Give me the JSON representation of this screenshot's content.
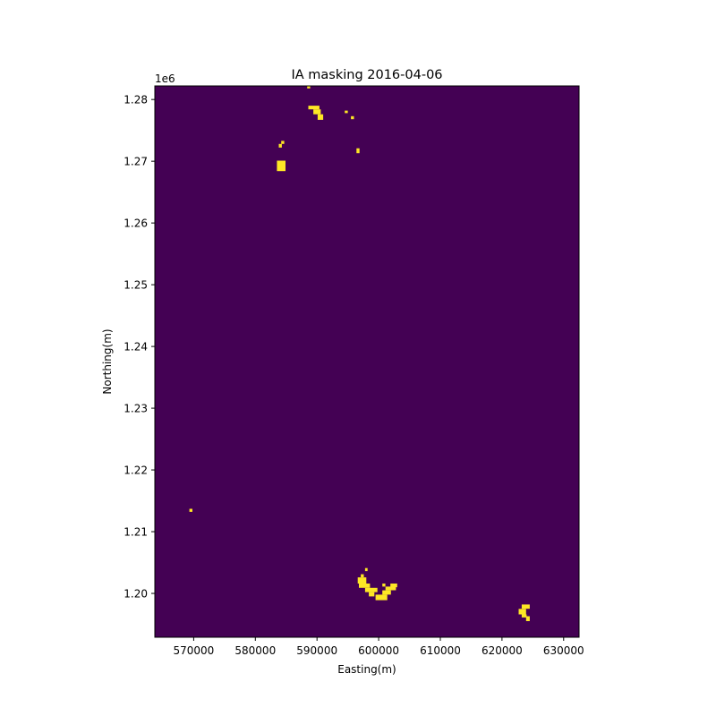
{
  "chart_data": {
    "type": "heatmap",
    "title": "IA masking 2016-04-06",
    "xlabel": "Easting(m)",
    "ylabel": "Northing(m)",
    "y_offset_label": "1e6",
    "xlim": [
      563700,
      632500
    ],
    "ylim": [
      1192900,
      1282200
    ],
    "x_ticks": [
      570000,
      580000,
      590000,
      600000,
      610000,
      620000,
      630000
    ],
    "x_tick_labels": [
      "570000",
      "580000",
      "590000",
      "600000",
      "610000",
      "620000",
      "630000"
    ],
    "y_ticks": [
      1200000,
      1210000,
      1220000,
      1230000,
      1240000,
      1250000,
      1260000,
      1270000,
      1280000
    ],
    "y_tick_labels": [
      "1.20",
      "1.21",
      "1.22",
      "1.23",
      "1.24",
      "1.25",
      "1.26",
      "1.27",
      "1.28"
    ],
    "grid": false,
    "legend": "none",
    "background_value": 0,
    "mask_value": 1,
    "colors": {
      "background": "#440154",
      "mask": "#fde725"
    },
    "masked_cells": [
      {
        "x0": 588400,
        "x1": 588900,
        "y0": 1281800,
        "y1": 1282200
      },
      {
        "x0": 588600,
        "x1": 590400,
        "y0": 1278400,
        "y1": 1279000
      },
      {
        "x0": 589400,
        "x1": 590600,
        "y0": 1277600,
        "y1": 1278400
      },
      {
        "x0": 590100,
        "x1": 591000,
        "y0": 1276700,
        "y1": 1277600
      },
      {
        "x0": 594500,
        "x1": 595000,
        "y0": 1277800,
        "y1": 1278200
      },
      {
        "x0": 595500,
        "x1": 596000,
        "y0": 1276800,
        "y1": 1277300
      },
      {
        "x0": 583800,
        "x1": 584300,
        "y0": 1272200,
        "y1": 1272800
      },
      {
        "x0": 584200,
        "x1": 584700,
        "y0": 1272800,
        "y1": 1273300
      },
      {
        "x0": 583500,
        "x1": 584900,
        "y0": 1268400,
        "y1": 1270100
      },
      {
        "x0": 596400,
        "x1": 596900,
        "y0": 1271300,
        "y1": 1272100
      },
      {
        "x0": 569300,
        "x1": 569800,
        "y0": 1213200,
        "y1": 1213700
      },
      {
        "x0": 597800,
        "x1": 598200,
        "y0": 1203600,
        "y1": 1204100
      },
      {
        "x0": 597100,
        "x1": 597600,
        "y0": 1202600,
        "y1": 1203100
      },
      {
        "x0": 596600,
        "x1": 598000,
        "y0": 1201600,
        "y1": 1202600
      },
      {
        "x0": 596800,
        "x1": 598600,
        "y0": 1200900,
        "y1": 1201600
      },
      {
        "x0": 597800,
        "x1": 599800,
        "y0": 1200200,
        "y1": 1200900
      },
      {
        "x0": 598400,
        "x1": 599300,
        "y0": 1199500,
        "y1": 1200200
      },
      {
        "x0": 599500,
        "x1": 601400,
        "y0": 1198900,
        "y1": 1199800
      },
      {
        "x0": 600600,
        "x1": 602000,
        "y0": 1199800,
        "y1": 1200500
      },
      {
        "x0": 601100,
        "x1": 602800,
        "y0": 1200500,
        "y1": 1201100
      },
      {
        "x0": 601900,
        "x1": 603000,
        "y0": 1201000,
        "y1": 1201600
      },
      {
        "x0": 600600,
        "x1": 601100,
        "y0": 1201100,
        "y1": 1201600
      },
      {
        "x0": 623200,
        "x1": 624500,
        "y0": 1197500,
        "y1": 1198200
      },
      {
        "x0": 622700,
        "x1": 623900,
        "y0": 1196600,
        "y1": 1197500
      },
      {
        "x0": 623200,
        "x1": 624000,
        "y0": 1196100,
        "y1": 1196600
      },
      {
        "x0": 623900,
        "x1": 624500,
        "y0": 1195500,
        "y1": 1196300
      }
    ]
  }
}
